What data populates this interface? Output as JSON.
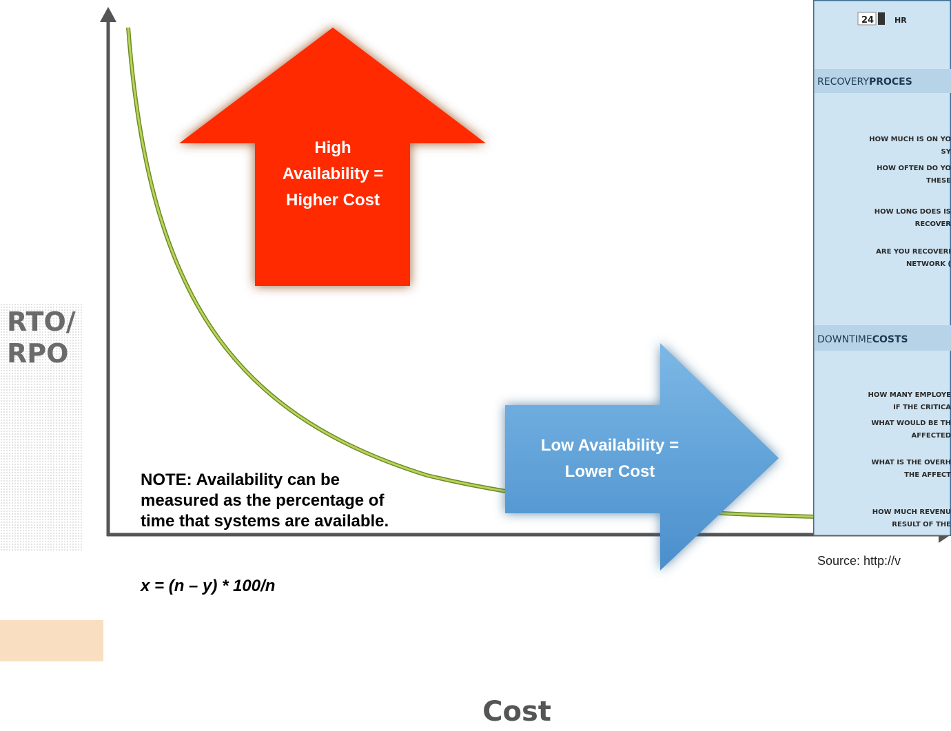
{
  "axes": {
    "y_label": [
      "RTO/",
      "RPO"
    ],
    "x_label": "Cost"
  },
  "high_arrow": {
    "lines": [
      "High",
      "Availability =",
      "Higher  Cost"
    ]
  },
  "low_arrow": {
    "lines": [
      "Low Availability =",
      "Lower Cost"
    ]
  },
  "note": {
    "lines": [
      "NOTE: Availability can be",
      "measured as the percentage of",
      "time that systems are available."
    ],
    "formula": "x = (n – y) * 100/n"
  },
  "panel": {
    "input_value": "24",
    "unit": "HR",
    "sections": [
      {
        "title_light": "RECOVERY",
        "title_bold": "PROCES",
        "questions": [
          [
            "HOW MUCH IS ON YO",
            "SY"
          ],
          [
            "HOW OFTEN DO YO",
            "THESE"
          ],
          [
            "HOW LONG DOES IS",
            "RECOVER"
          ],
          [
            "ARE YOU RECOVERI",
            "NETWORK ("
          ]
        ]
      },
      {
        "title_light": "DOWNTIME",
        "title_bold": "COSTS",
        "questions": [
          [
            "HOW MANY EMPLOYE",
            "IF THE CRITICA"
          ],
          [
            "WHAT WOULD BE TH",
            "AFFECTED"
          ],
          [
            "WHAT IS THE OVERH",
            "THE AFFECT"
          ],
          [
            "HOW MUCH REVENU",
            "RESULT OF THE"
          ]
        ]
      }
    ]
  },
  "source": "Source: http://v"
}
